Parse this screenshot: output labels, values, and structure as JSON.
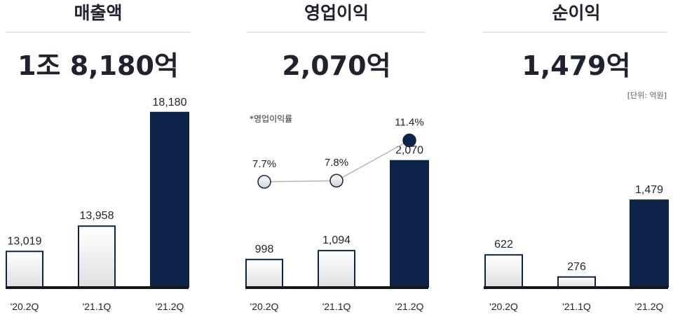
{
  "colors": {
    "highlight": "#0e2348",
    "bar_light": "#ffffff",
    "bar_light_end": "#e2e2e2",
    "axis": "#14161c",
    "divider": "#cfcfcf",
    "line": "#b5b5b5"
  },
  "unit_note": "[단위: 억원]",
  "chart_data": [
    {
      "type": "bar",
      "title": "매출액",
      "headline": "1조 8,180억",
      "categories": [
        "'20.2Q",
        "'21.1Q",
        "'21.2Q"
      ],
      "values": [
        13019,
        13958,
        18180
      ],
      "value_labels": [
        "13,019",
        "13,958",
        "18,180"
      ],
      "highlight_index": 2,
      "ylim": [
        11700,
        18200
      ]
    },
    {
      "type": "bar",
      "title": "영업이익",
      "headline": "2,070억",
      "categories": [
        "'20.2Q",
        "'21.1Q",
        "'21.2Q"
      ],
      "values": [
        998,
        1094,
        2070
      ],
      "value_labels": [
        "998",
        "1,094",
        "2,070"
      ],
      "highlight_index": 2,
      "ylim": [
        700,
        2600
      ],
      "margin_note": "*영업이익률",
      "margin_series": {
        "values": [
          7.7,
          7.8,
          11.4
        ],
        "labels": [
          "7.7%",
          "7.8%",
          "11.4%"
        ],
        "ylim": [
          7.0,
          11.5
        ]
      }
    },
    {
      "type": "bar",
      "title": "순이익",
      "headline": "1,479억",
      "categories": [
        "'20.2Q",
        "'21.1Q",
        "'21.2Q"
      ],
      "values": [
        622,
        276,
        1479
      ],
      "value_labels": [
        "622",
        "276",
        "1,479"
      ],
      "highlight_index": 2,
      "ylim": [
        120,
        1480
      ]
    }
  ]
}
